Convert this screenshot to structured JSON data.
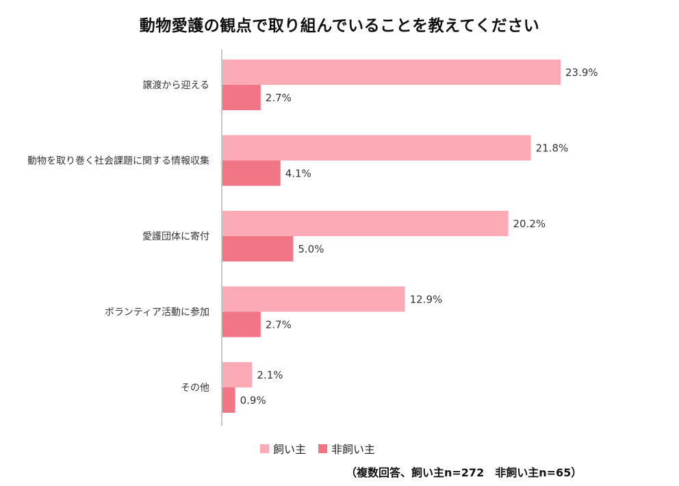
{
  "chart_data": {
    "type": "bar",
    "orientation": "horizontal",
    "title": "動物愛護の観点で取り組んでいることを教えてください",
    "categories": [
      "譲渡から迎える",
      "動物を取り巻く社会課題に関する情報収集",
      "愛護団体に寄付",
      "ボランティア活動に参加",
      "その他"
    ],
    "series": [
      {
        "name": "飼い主",
        "color": "#FBAAB6",
        "values": [
          23.9,
          21.8,
          20.2,
          12.9,
          2.1
        ],
        "labels": [
          "23.9%",
          "21.8%",
          "20.2%",
          "12.9%",
          "2.1%"
        ]
      },
      {
        "name": "非飼い主",
        "color": "#F07585",
        "values": [
          2.7,
          4.1,
          5.0,
          2.7,
          0.9
        ],
        "labels": [
          "2.7%",
          "4.1%",
          "5.0%",
          "2.7%",
          "0.9%"
        ]
      }
    ],
    "xlim": [
      0,
      30
    ],
    "value_unit": "%",
    "grid": false,
    "legend_position": "bottom",
    "note": "（複数回答、飼い主n=272　非飼い主n=65）"
  }
}
